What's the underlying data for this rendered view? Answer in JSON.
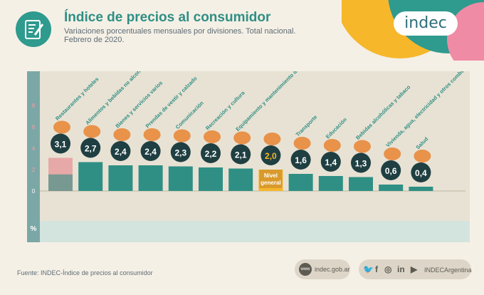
{
  "header": {
    "title": "Índice de precios al consumidor",
    "subtitle_line1": "Variaciones porcentuales mensuales por divisiones. Total nacional.",
    "subtitle_line2": "Febrero de 2020.",
    "header_icon": "document-edit-icon"
  },
  "brand": {
    "logo_text": "indec",
    "colors": [
      "#f6b72b",
      "#2f9a8e",
      "#ef8ba4"
    ]
  },
  "chart_data": {
    "type": "bar",
    "ylim": [
      0,
      8
    ],
    "yticks": [
      0,
      2,
      4,
      6,
      8
    ],
    "ylabel": "%",
    "decimal_separator": ",",
    "categories": [
      "Restaurantes y hoteles",
      "Alimentos y bebidas no alcohólicas",
      "Bienes y servicios varios",
      "Prendas de vestir y calzado",
      "Comunicación",
      "Recreación y cultura",
      "Equipamiento y mantenimiento del hogar",
      "Nivel general",
      "Transporte",
      "Educación",
      "Bebidas alcohólicas y tabaco",
      "Vivienda, agua, electricidad y otros combustibles",
      "Salud"
    ],
    "values": [
      3.1,
      2.7,
      2.4,
      2.4,
      2.3,
      2.2,
      2.1,
      2.0,
      1.6,
      1.4,
      1.3,
      0.6,
      0.4
    ],
    "value_labels": [
      "3,1",
      "2,7",
      "2,4",
      "2,4",
      "2,3",
      "2,2",
      "2,1",
      "2,0",
      "1,6",
      "1,4",
      "1,3",
      "0,6",
      "0,4"
    ],
    "colors": {
      "bar": "#2f8f84",
      "general_bar": "#f6b72b",
      "general_label_bg": "#d99a2b",
      "bubble": "#1f3f42",
      "general_bubble_text": "#f6b72b",
      "highlight_bar": "#e57a82"
    },
    "icons": [
      "bowl-icon",
      "bread-icon",
      "scissors-icon",
      "tshirt-icon",
      "phone-icon",
      "tickets-icon",
      "washing-machine-icon",
      "shopping-basket-icon",
      "bus-icon",
      "book-icon",
      "bottle-icon",
      "bulb-icon",
      "medical-kit-icon"
    ]
  },
  "footer": {
    "source": "Fuente: INDEC-Índice de precios al consumidor",
    "web_icon": "www",
    "web": "indec.gob.ar",
    "social_icons": [
      "twitter-icon",
      "facebook-icon",
      "instagram-icon",
      "linkedin-icon",
      "youtube-icon"
    ],
    "social_handle": "INDECArgentina"
  }
}
